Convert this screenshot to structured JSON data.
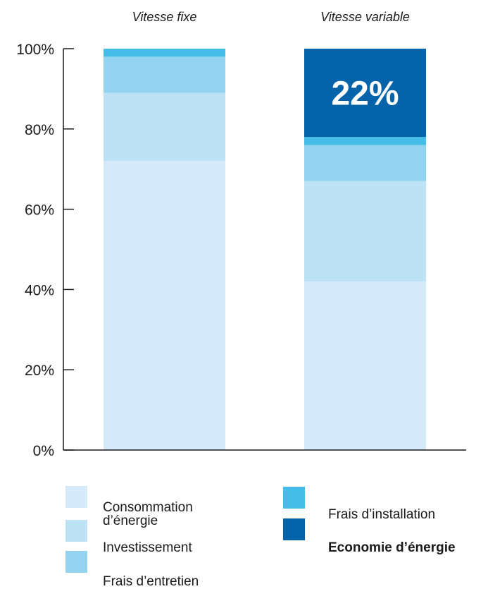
{
  "chart_data": {
    "type": "bar",
    "stacked": true,
    "categories": [
      "Vitesse fixe",
      "Vitesse variable"
    ],
    "series": [
      {
        "name": "Consommation d’énergie",
        "color": "#d5eaf8",
        "values": [
          72,
          42
        ]
      },
      {
        "name": "Investissement",
        "color": "#bde2f5",
        "values": [
          17,
          25
        ]
      },
      {
        "name": "Frais d’entretien",
        "color": "#93d3ef",
        "values": [
          9,
          9
        ]
      },
      {
        "name": "Frais d’installation",
        "color": "#45bde8",
        "values": [
          2,
          2
        ]
      },
      {
        "name": "Economie d’énergie",
        "color": "#0563aa",
        "values": [
          0,
          22
        ]
      }
    ],
    "data_labels": [
      {
        "category": "Vitesse variable",
        "series": "Economie d’énergie",
        "text": "22%"
      }
    ],
    "yticks": [
      "0%",
      "20%",
      "40%",
      "60%",
      "80%",
      "100%"
    ],
    "ylim": [
      0,
      100
    ],
    "grid": false,
    "legend_position": "bottom"
  },
  "legend": {
    "items": [
      {
        "label": "Consommation\nd’énergie",
        "color": "#d5eaf8",
        "bold": false
      },
      {
        "label": "Investissement",
        "color": "#bde2f5",
        "bold": false
      },
      {
        "label": "Frais d’entretien",
        "color": "#93d3ef",
        "bold": false
      },
      {
        "label": "Frais d’installation",
        "color": "#45bde8",
        "bold": false
      },
      {
        "label": "Economie d’énergie",
        "color": "#0563aa",
        "bold": true
      }
    ]
  }
}
